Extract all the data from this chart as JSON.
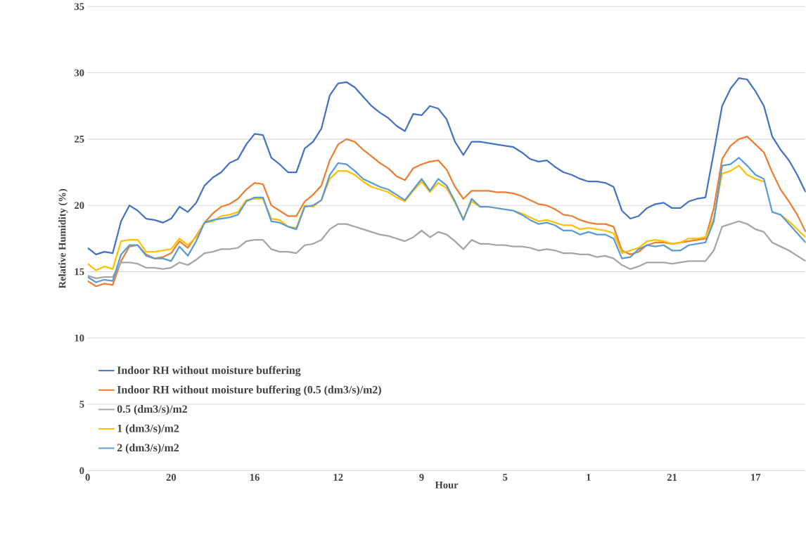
{
  "chart_data": {
    "type": "line",
    "xlabel": "Hour",
    "ylabel": "Relative Humidity (%)",
    "categories": [
      "0",
      null,
      null,
      null,
      null,
      null,
      null,
      null,
      null,
      null,
      "20",
      null,
      null,
      null,
      null,
      null,
      null,
      null,
      null,
      null,
      "16",
      null,
      null,
      null,
      null,
      null,
      null,
      null,
      null,
      null,
      "12",
      null,
      null,
      null,
      null,
      null,
      null,
      null,
      null,
      null,
      "9",
      null,
      null,
      null,
      null,
      null,
      null,
      null,
      null,
      null,
      "5",
      null,
      null,
      null,
      null,
      null,
      null,
      null,
      null,
      null,
      "1",
      null,
      null,
      null,
      null,
      null,
      null,
      null,
      null,
      null,
      "21",
      null,
      null,
      null,
      null,
      null,
      null,
      null,
      null,
      null,
      "17",
      null,
      null,
      null,
      null,
      null,
      null
    ],
    "ylim": [
      0,
      35
    ],
    "yticks": [
      0,
      5,
      10,
      15,
      20,
      25,
      30,
      35
    ],
    "grid": "y",
    "legend": "bottom left",
    "marker": "none",
    "series": [
      {
        "name": "Indoor RH without moisture buffering",
        "color": "#4472c4",
        "values": [
          16.8,
          16.3,
          16.5,
          16.4,
          18.8,
          20.0,
          19.6,
          19.0,
          18.9,
          18.7,
          19.0,
          19.9,
          19.5,
          20.2,
          21.5,
          22.1,
          22.5,
          23.2,
          23.5,
          24.6,
          25.4,
          25.3,
          23.6,
          23.1,
          22.5,
          22.5,
          24.3,
          24.8,
          25.8,
          28.3,
          29.2,
          29.3,
          28.9,
          28.2,
          27.5,
          27.0,
          26.6,
          26.0,
          25.6,
          26.9,
          26.8,
          27.5,
          27.3,
          26.5,
          24.8,
          23.8,
          24.8,
          24.8,
          24.7,
          24.6,
          24.5,
          24.4,
          24.0,
          23.5,
          23.3,
          23.4,
          22.9,
          22.5,
          22.3,
          22.0,
          21.8,
          21.8,
          21.7,
          21.4,
          19.6,
          19.0,
          19.2,
          19.8,
          20.1,
          20.2,
          19.8,
          19.8,
          20.3,
          20.5,
          20.6,
          24.0,
          27.5,
          28.8,
          29.6,
          29.5,
          28.6,
          27.5,
          25.2,
          24.2,
          23.4,
          22.3,
          21.0
        ]
      },
      {
        "name": "Indoor RH without moisture buffering (0.5 (dm3/s)/m2)",
        "color": "#ed7d31",
        "values": [
          14.3,
          13.9,
          14.1,
          14.0,
          15.8,
          16.9,
          17.0,
          16.3,
          16.0,
          16.1,
          16.4,
          17.3,
          16.8,
          17.7,
          18.7,
          19.4,
          19.9,
          20.1,
          20.5,
          21.2,
          21.7,
          21.6,
          20.0,
          19.6,
          19.2,
          19.2,
          20.3,
          20.8,
          21.5,
          23.4,
          24.6,
          25.0,
          24.8,
          24.2,
          23.7,
          23.2,
          22.8,
          22.2,
          21.9,
          22.8,
          23.1,
          23.3,
          23.4,
          22.7,
          21.4,
          20.5,
          21.1,
          21.1,
          21.1,
          21.0,
          21.0,
          20.9,
          20.7,
          20.4,
          20.1,
          20.0,
          19.7,
          19.3,
          19.2,
          18.9,
          18.7,
          18.6,
          18.6,
          18.4,
          16.6,
          16.3,
          16.5,
          17.0,
          17.2,
          17.2,
          17.1,
          17.2,
          17.3,
          17.4,
          17.5,
          19.8,
          23.5,
          24.5,
          25.0,
          25.2,
          24.6,
          24.0,
          22.5,
          21.2,
          20.3,
          19.3,
          18.0
        ]
      },
      {
        "name": "0.5 (dm3/s)/m2",
        "color": "#a5a5a5",
        "values": [
          14.7,
          14.5,
          14.6,
          14.6,
          15.7,
          15.7,
          15.6,
          15.3,
          15.3,
          15.2,
          15.3,
          15.7,
          15.5,
          15.9,
          16.4,
          16.5,
          16.7,
          16.7,
          16.8,
          17.3,
          17.4,
          17.4,
          16.7,
          16.5,
          16.5,
          16.4,
          17.0,
          17.1,
          17.4,
          18.2,
          18.6,
          18.6,
          18.4,
          18.2,
          18.0,
          17.8,
          17.7,
          17.5,
          17.3,
          17.6,
          18.1,
          17.6,
          18.0,
          17.8,
          17.3,
          16.7,
          17.4,
          17.1,
          17.1,
          17.0,
          17.0,
          16.9,
          16.9,
          16.8,
          16.6,
          16.7,
          16.6,
          16.4,
          16.4,
          16.3,
          16.3,
          16.1,
          16.2,
          16.0,
          15.5,
          15.2,
          15.4,
          15.7,
          15.7,
          15.7,
          15.6,
          15.7,
          15.8,
          15.8,
          15.8,
          16.6,
          18.4,
          18.6,
          18.8,
          18.6,
          18.2,
          18.0,
          17.2,
          16.9,
          16.6,
          16.2,
          15.8
        ]
      },
      {
        "name": "1 (dm3/s)/m2",
        "color": "#ffc000",
        "values": [
          15.6,
          15.1,
          15.4,
          15.2,
          17.3,
          17.4,
          17.4,
          16.5,
          16.5,
          16.6,
          16.7,
          17.5,
          17.0,
          17.6,
          18.7,
          18.8,
          19.2,
          19.3,
          19.5,
          20.4,
          20.5,
          20.5,
          19.0,
          18.9,
          18.4,
          18.3,
          20.0,
          19.9,
          20.4,
          22.0,
          22.6,
          22.6,
          22.3,
          21.8,
          21.4,
          21.2,
          21.0,
          20.6,
          20.3,
          21.1,
          21.8,
          21.0,
          21.7,
          21.3,
          20.2,
          19.0,
          20.3,
          19.9,
          null,
          null,
          null,
          19.6,
          19.4,
          19.1,
          18.8,
          18.9,
          18.7,
          18.5,
          18.5,
          18.2,
          18.3,
          18.2,
          18.1,
          17.9,
          16.4,
          16.6,
          16.8,
          17.3,
          17.4,
          17.3,
          17.1,
          17.2,
          17.5,
          17.5,
          17.6,
          19.0,
          22.4,
          22.6,
          23.0,
          22.3,
          22.0,
          21.8,
          null,
          19.3,
          18.8,
          18.2,
          17.6
        ]
      },
      {
        "name": "2 (dm3/s)/m2",
        "color": "#5b9bd5",
        "values": [
          14.6,
          14.2,
          14.4,
          14.3,
          16.3,
          17.0,
          17.0,
          16.2,
          16.0,
          16.0,
          15.8,
          16.9,
          16.2,
          17.3,
          18.7,
          18.9,
          19.0,
          19.1,
          19.3,
          20.3,
          20.6,
          20.6,
          18.8,
          18.7,
          18.4,
          18.2,
          19.9,
          20.0,
          20.4,
          22.3,
          23.2,
          23.1,
          22.6,
          22.0,
          21.7,
          21.4,
          21.2,
          20.8,
          20.4,
          21.2,
          22.0,
          21.1,
          22.0,
          21.5,
          20.3,
          18.9,
          20.5,
          19.9,
          19.9,
          19.8,
          19.7,
          19.6,
          19.3,
          18.9,
          18.6,
          18.7,
          18.5,
          18.1,
          18.1,
          17.8,
          18.0,
          17.8,
          17.8,
          17.5,
          16.0,
          16.1,
          16.7,
          17.0,
          16.9,
          17.0,
          16.6,
          16.6,
          17.0,
          17.1,
          17.2,
          18.8,
          23.0,
          23.1,
          23.6,
          23.0,
          22.3,
          22.0,
          19.5,
          19.3,
          18.6,
          17.9,
          17.2
        ]
      }
    ]
  }
}
